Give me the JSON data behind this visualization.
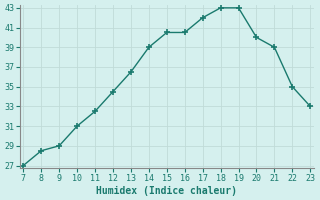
{
  "x": [
    7,
    8,
    9,
    10,
    11,
    12,
    13,
    14,
    15,
    16,
    17,
    18,
    19,
    20,
    21,
    22,
    23
  ],
  "y": [
    27,
    28.5,
    29,
    31,
    32.5,
    34.5,
    36.5,
    39,
    40.5,
    40.5,
    42,
    43,
    43,
    40,
    39,
    35,
    33
  ],
  "xlabel": "Humidex (Indice chaleur)",
  "xlim": [
    7,
    23
  ],
  "ylim": [
    27,
    43
  ],
  "yticks": [
    27,
    29,
    31,
    33,
    35,
    37,
    39,
    41,
    43
  ],
  "xticks": [
    7,
    8,
    9,
    10,
    11,
    12,
    13,
    14,
    15,
    16,
    17,
    18,
    19,
    20,
    21,
    22,
    23
  ],
  "line_color": "#1a7a6e",
  "marker_color": "#1a7a6e",
  "bg_color": "#d5f0ee",
  "grid_major_color": "#c0dbd8",
  "grid_minor_color": "#c0dbd8",
  "label_color": "#1a7a6e",
  "tick_label_color": "#1a7a6e",
  "spine_color": "#888888"
}
